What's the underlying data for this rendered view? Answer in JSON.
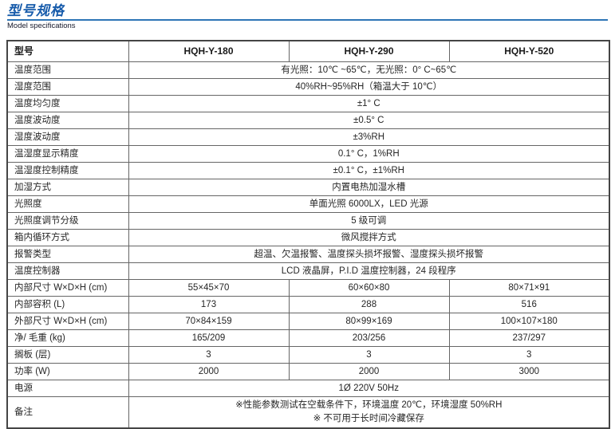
{
  "page": {
    "title": "型号规格",
    "subtitle": "Model specifications",
    "accent_color": "#185cab",
    "rule_color": "#2e75b6"
  },
  "table": {
    "header": {
      "label": "型号",
      "models": [
        "HQH-Y-180",
        "HQH-Y-290",
        "HQH-Y-520"
      ]
    },
    "rows": [
      {
        "label": "温度范围",
        "span": "有光照：10℃ ~65℃，无光照：0° C~65℃"
      },
      {
        "label": "湿度范围",
        "span": "40%RH~95%RH（箱温大于 10℃）"
      },
      {
        "label": "温度均匀度",
        "span": "±1° C"
      },
      {
        "label": "温度波动度",
        "span": "±0.5° C"
      },
      {
        "label": "湿度波动度",
        "span": "±3%RH"
      },
      {
        "label": "温湿度显示精度",
        "span": "0.1° C，1%RH"
      },
      {
        "label": "温湿度控制精度",
        "span": "±0.1° C，±1%RH"
      },
      {
        "label": "加湿方式",
        "span": "内置电热加湿水槽"
      },
      {
        "label": "光照度",
        "span": "单面光照 6000LX，LED 光源"
      },
      {
        "label": "光照度调节分级",
        "span": "5 级可调"
      },
      {
        "label": "箱内循环方式",
        "span": "微风搅拌方式"
      },
      {
        "label": "报警类型",
        "span": "超温、欠温报警、温度探头损坏报警、湿度探头损坏报警"
      },
      {
        "label": "温度控制器",
        "span": "LCD 液晶屏，P.I.D 温度控制器，24 段程序"
      },
      {
        "label": "内部尺寸 W×D×H (cm)",
        "cells": [
          "55×45×70",
          "60×60×80",
          "80×71×91"
        ]
      },
      {
        "label": "内部容积 (L)",
        "cells": [
          "173",
          "288",
          "516"
        ]
      },
      {
        "label": "外部尺寸 W×D×H (cm)",
        "cells": [
          "70×84×159",
          "80×99×169",
          "100×107×180"
        ]
      },
      {
        "label": "净/ 毛重 (kg)",
        "cells": [
          "165/209",
          "203/256",
          "237/297"
        ]
      },
      {
        "label": "搁板 (层)",
        "cells": [
          "3",
          "3",
          "3"
        ]
      },
      {
        "label": "功率 (W)",
        "cells": [
          "2000",
          "2000",
          "3000"
        ]
      },
      {
        "label": "电源",
        "span": "1Ø 220V 50Hz"
      },
      {
        "label": "备注",
        "span_lines": [
          "※性能参数测试在空载条件下，环境温度 20℃，环境湿度 50%RH",
          "※ 不可用于长时间冷藏保存"
        ]
      }
    ]
  }
}
